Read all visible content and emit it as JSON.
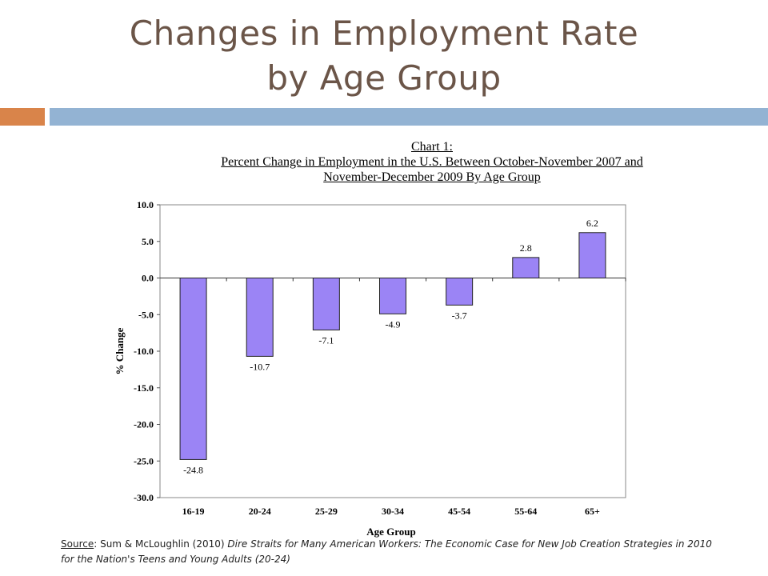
{
  "slide": {
    "title_line1": "Changes in Employment Rate",
    "title_line2": "by Age Group"
  },
  "chart_data": {
    "type": "bar",
    "title_lines": [
      "Chart 1:",
      "Percent Change in Employment in the U.S. Between October-November 2007 and",
      "November-December 2009 By Age Group"
    ],
    "categories": [
      "16-19",
      "20-24",
      "25-29",
      "30-34",
      "45-54",
      "55-64",
      "65+"
    ],
    "values": [
      -24.8,
      -10.7,
      -7.1,
      -4.9,
      -3.7,
      2.8,
      6.2
    ],
    "value_labels": [
      "-24.8",
      "-10.7",
      "-7.1",
      "-4.9",
      "-3.7",
      "2.8",
      "6.2"
    ],
    "xlabel": "Age Group",
    "ylabel": "% Change",
    "ylim": [
      -30,
      10
    ],
    "yticks": [
      10,
      5,
      0,
      -5,
      -10,
      -15,
      -20,
      -25,
      -30
    ],
    "ytick_labels": [
      "10.0",
      "5.0",
      "0.0",
      "-5.0",
      "-10.0",
      "-15.0",
      "-20.0",
      "-25.0",
      "-30.0"
    ],
    "grid": false,
    "legend": "none",
    "bar_color": "#9b84f5"
  },
  "source": {
    "label": "Source",
    "authors": ": Sum & McLoughlin (2010) ",
    "title": "Dire Straits for Many American Workers: The Economic Case for New Job Creation Strategies in 2010 for the Nation's Teens and Young Adults (20-24)"
  }
}
